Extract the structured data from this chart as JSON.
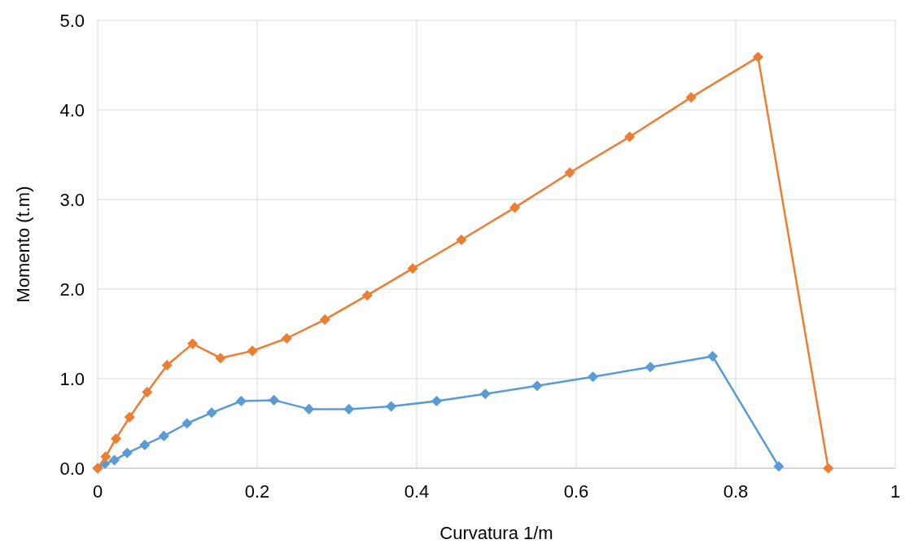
{
  "chart_data": {
    "type": "line",
    "xlabel": "Curvatura 1/m",
    "ylabel": "Momento (t.m)",
    "xlim": [
      0,
      1
    ],
    "ylim": [
      0,
      5
    ],
    "xticks": [
      0,
      0.2,
      0.4,
      0.6,
      0.8,
      1
    ],
    "yticks": [
      {
        "value": 0,
        "label": "0.0"
      },
      {
        "value": 1,
        "label": "1.0"
      },
      {
        "value": 2,
        "label": "2.0"
      },
      {
        "value": 3,
        "label": "3.0"
      },
      {
        "value": 4,
        "label": "4.0"
      },
      {
        "value": 5,
        "label": "5.0"
      }
    ],
    "grid": true,
    "marker": "diamond",
    "line_style": "solid",
    "series": [
      {
        "color": "#5b9bd5",
        "x": [
          0,
          0.009,
          0.021,
          0.037,
          0.059,
          0.083,
          0.112,
          0.143,
          0.18,
          0.221,
          0.265,
          0.315,
          0.368,
          0.425,
          0.486,
          0.551,
          0.621,
          0.693,
          0.771,
          0.854
        ],
        "values": [
          0,
          0.05,
          0.09,
          0.17,
          0.26,
          0.36,
          0.5,
          0.62,
          0.75,
          0.76,
          0.66,
          0.66,
          0.69,
          0.75,
          0.83,
          0.92,
          1.02,
          1.13,
          1.25,
          0.02
        ]
      },
      {
        "color": "#ed7d31",
        "x": [
          0,
          0.01,
          0.023,
          0.04,
          0.062,
          0.087,
          0.119,
          0.154,
          0.194,
          0.237,
          0.285,
          0.338,
          0.395,
          0.456,
          0.523,
          0.592,
          0.667,
          0.744,
          0.828,
          0.916
        ],
        "values": [
          0,
          0.13,
          0.33,
          0.57,
          0.85,
          1.15,
          1.39,
          1.23,
          1.31,
          1.45,
          1.66,
          1.93,
          2.23,
          2.55,
          2.91,
          3.3,
          3.7,
          4.14,
          4.59,
          0
        ]
      }
    ]
  }
}
